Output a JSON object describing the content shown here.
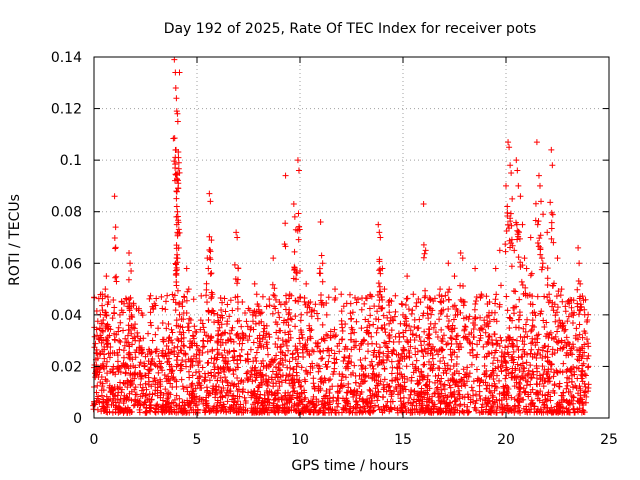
{
  "chart_data": {
    "type": "scatter",
    "title": "Day 192 of 2025, Rate Of TEC Index for receiver pots",
    "xlabel": "GPS time / hours",
    "ylabel": "ROTI / TECUs",
    "xlim": [
      0,
      25
    ],
    "ylim": [
      0,
      0.14
    ],
    "grid": true,
    "x_ticks": [
      0,
      5,
      10,
      15,
      20,
      25
    ],
    "x_tick_labels": [
      "0",
      "5",
      "10",
      "15",
      "20",
      "25"
    ],
    "y_ticks": [
      0,
      0.02,
      0.04,
      0.06,
      0.08,
      0.1,
      0.12,
      0.14
    ],
    "y_tick_labels": [
      "0",
      "0.02",
      "0.04",
      "0.06",
      "0.08",
      "0.1",
      "0.12",
      "0.14"
    ],
    "marker": "+",
    "marker_color": "#ff0000",
    "series": [
      {
        "name": "ROTI",
        "points": [
          [
            0.0,
            0.012
          ],
          [
            0.1,
            0.018
          ],
          [
            0.15,
            0.025
          ],
          [
            0.3,
            0.032
          ],
          [
            0.4,
            0.048
          ],
          [
            0.45,
            0.038
          ],
          [
            0.55,
            0.05
          ],
          [
            0.6,
            0.055
          ],
          [
            0.7,
            0.045
          ],
          [
            0.75,
            0.032
          ],
          [
            1.0,
            0.086
          ],
          [
            1.05,
            0.074
          ],
          [
            1.2,
            0.035
          ],
          [
            1.5,
            0.028
          ],
          [
            1.7,
            0.064
          ],
          [
            1.75,
            0.06
          ],
          [
            1.8,
            0.057
          ],
          [
            2.0,
            0.03
          ],
          [
            2.3,
            0.025
          ],
          [
            2.8,
            0.022
          ],
          [
            3.2,
            0.02
          ],
          [
            3.6,
            0.025
          ],
          [
            3.9,
            0.139
          ],
          [
            3.95,
            0.134
          ],
          [
            3.97,
            0.128
          ],
          [
            4.0,
            0.124
          ],
          [
            4.02,
            0.119
          ],
          [
            4.05,
            0.118
          ],
          [
            4.07,
            0.115
          ],
          [
            4.1,
            0.101
          ],
          [
            4.12,
            0.099
          ],
          [
            4.0,
            0.088
          ],
          [
            4.02,
            0.082
          ],
          [
            4.05,
            0.08
          ],
          [
            4.0,
            0.078
          ],
          [
            4.02,
            0.075
          ],
          [
            4.05,
            0.072
          ],
          [
            4.0,
            0.056
          ],
          [
            4.15,
            0.134
          ],
          [
            4.3,
            0.045
          ],
          [
            4.5,
            0.058
          ],
          [
            4.6,
            0.05
          ],
          [
            4.7,
            0.038
          ],
          [
            4.8,
            0.032
          ],
          [
            5.0,
            0.028
          ],
          [
            5.5,
            0.062
          ],
          [
            5.55,
            0.058
          ],
          [
            5.6,
            0.087
          ],
          [
            5.65,
            0.084
          ],
          [
            5.7,
            0.069
          ],
          [
            5.75,
            0.048
          ],
          [
            6.0,
            0.04
          ],
          [
            6.5,
            0.03
          ],
          [
            6.9,
            0.072
          ],
          [
            6.95,
            0.07
          ],
          [
            7.0,
            0.058
          ],
          [
            7.2,
            0.045
          ],
          [
            7.8,
            0.052
          ],
          [
            7.9,
            0.048
          ],
          [
            8.0,
            0.042
          ],
          [
            8.2,
            0.047
          ],
          [
            8.7,
            0.062
          ],
          [
            9.0,
            0.045
          ],
          [
            9.3,
            0.094
          ],
          [
            9.5,
            0.048
          ],
          [
            9.7,
            0.083
          ],
          [
            9.75,
            0.078
          ],
          [
            9.8,
            0.073
          ],
          [
            9.9,
            0.1
          ],
          [
            9.95,
            0.096
          ],
          [
            10.0,
            0.057
          ],
          [
            10.3,
            0.052
          ],
          [
            10.5,
            0.045
          ],
          [
            11.0,
            0.076
          ],
          [
            11.05,
            0.063
          ],
          [
            11.1,
            0.06
          ],
          [
            11.3,
            0.04
          ],
          [
            11.7,
            0.05
          ],
          [
            12.0,
            0.048
          ],
          [
            12.5,
            0.035
          ],
          [
            13.0,
            0.042
          ],
          [
            13.8,
            0.075
          ],
          [
            13.85,
            0.072
          ],
          [
            13.9,
            0.07
          ],
          [
            14.0,
            0.058
          ],
          [
            14.1,
            0.05
          ],
          [
            14.3,
            0.045
          ],
          [
            14.5,
            0.038
          ],
          [
            15.0,
            0.04
          ],
          [
            15.2,
            0.055
          ],
          [
            15.5,
            0.048
          ],
          [
            16.0,
            0.083
          ],
          [
            16.1,
            0.065
          ],
          [
            16.2,
            0.043
          ],
          [
            16.5,
            0.035
          ],
          [
            16.8,
            0.05
          ],
          [
            17.2,
            0.06
          ],
          [
            17.5,
            0.055
          ],
          [
            17.8,
            0.064
          ],
          [
            17.9,
            0.062
          ],
          [
            18.0,
            0.045
          ],
          [
            18.5,
            0.058
          ],
          [
            18.8,
            0.048
          ],
          [
            19.2,
            0.045
          ],
          [
            19.5,
            0.058
          ],
          [
            19.7,
            0.065
          ],
          [
            20.0,
            0.09
          ],
          [
            20.1,
            0.107
          ],
          [
            20.15,
            0.105
          ],
          [
            20.2,
            0.098
          ],
          [
            20.25,
            0.095
          ],
          [
            20.3,
            0.085
          ],
          [
            20.4,
            0.065
          ],
          [
            20.5,
            0.1
          ],
          [
            20.55,
            0.096
          ],
          [
            20.6,
            0.09
          ],
          [
            20.7,
            0.086
          ],
          [
            20.8,
            0.075
          ],
          [
            20.9,
            0.062
          ],
          [
            21.0,
            0.058
          ],
          [
            21.2,
            0.07
          ],
          [
            21.5,
            0.107
          ],
          [
            21.6,
            0.094
          ],
          [
            21.65,
            0.09
          ],
          [
            21.7,
            0.084
          ],
          [
            21.8,
            0.079
          ],
          [
            22.0,
            0.072
          ],
          [
            22.2,
            0.104
          ],
          [
            22.25,
            0.098
          ],
          [
            22.3,
            0.068
          ],
          [
            22.5,
            0.062
          ],
          [
            22.7,
            0.05
          ],
          [
            23.0,
            0.045
          ],
          [
            23.2,
            0.04
          ],
          [
            23.5,
            0.066
          ],
          [
            23.55,
            0.06
          ],
          [
            23.6,
            0.052
          ],
          [
            23.8,
            0.042
          ],
          [
            23.95,
            0.038
          ],
          [
            24.0,
            0.02
          ]
        ],
        "dense_band": {
          "description": "continuous cluster of measurements along the whole day",
          "x_range": [
            0,
            24
          ],
          "y_range": [
            0.002,
            0.032
          ],
          "density": "high"
        }
      }
    ]
  }
}
